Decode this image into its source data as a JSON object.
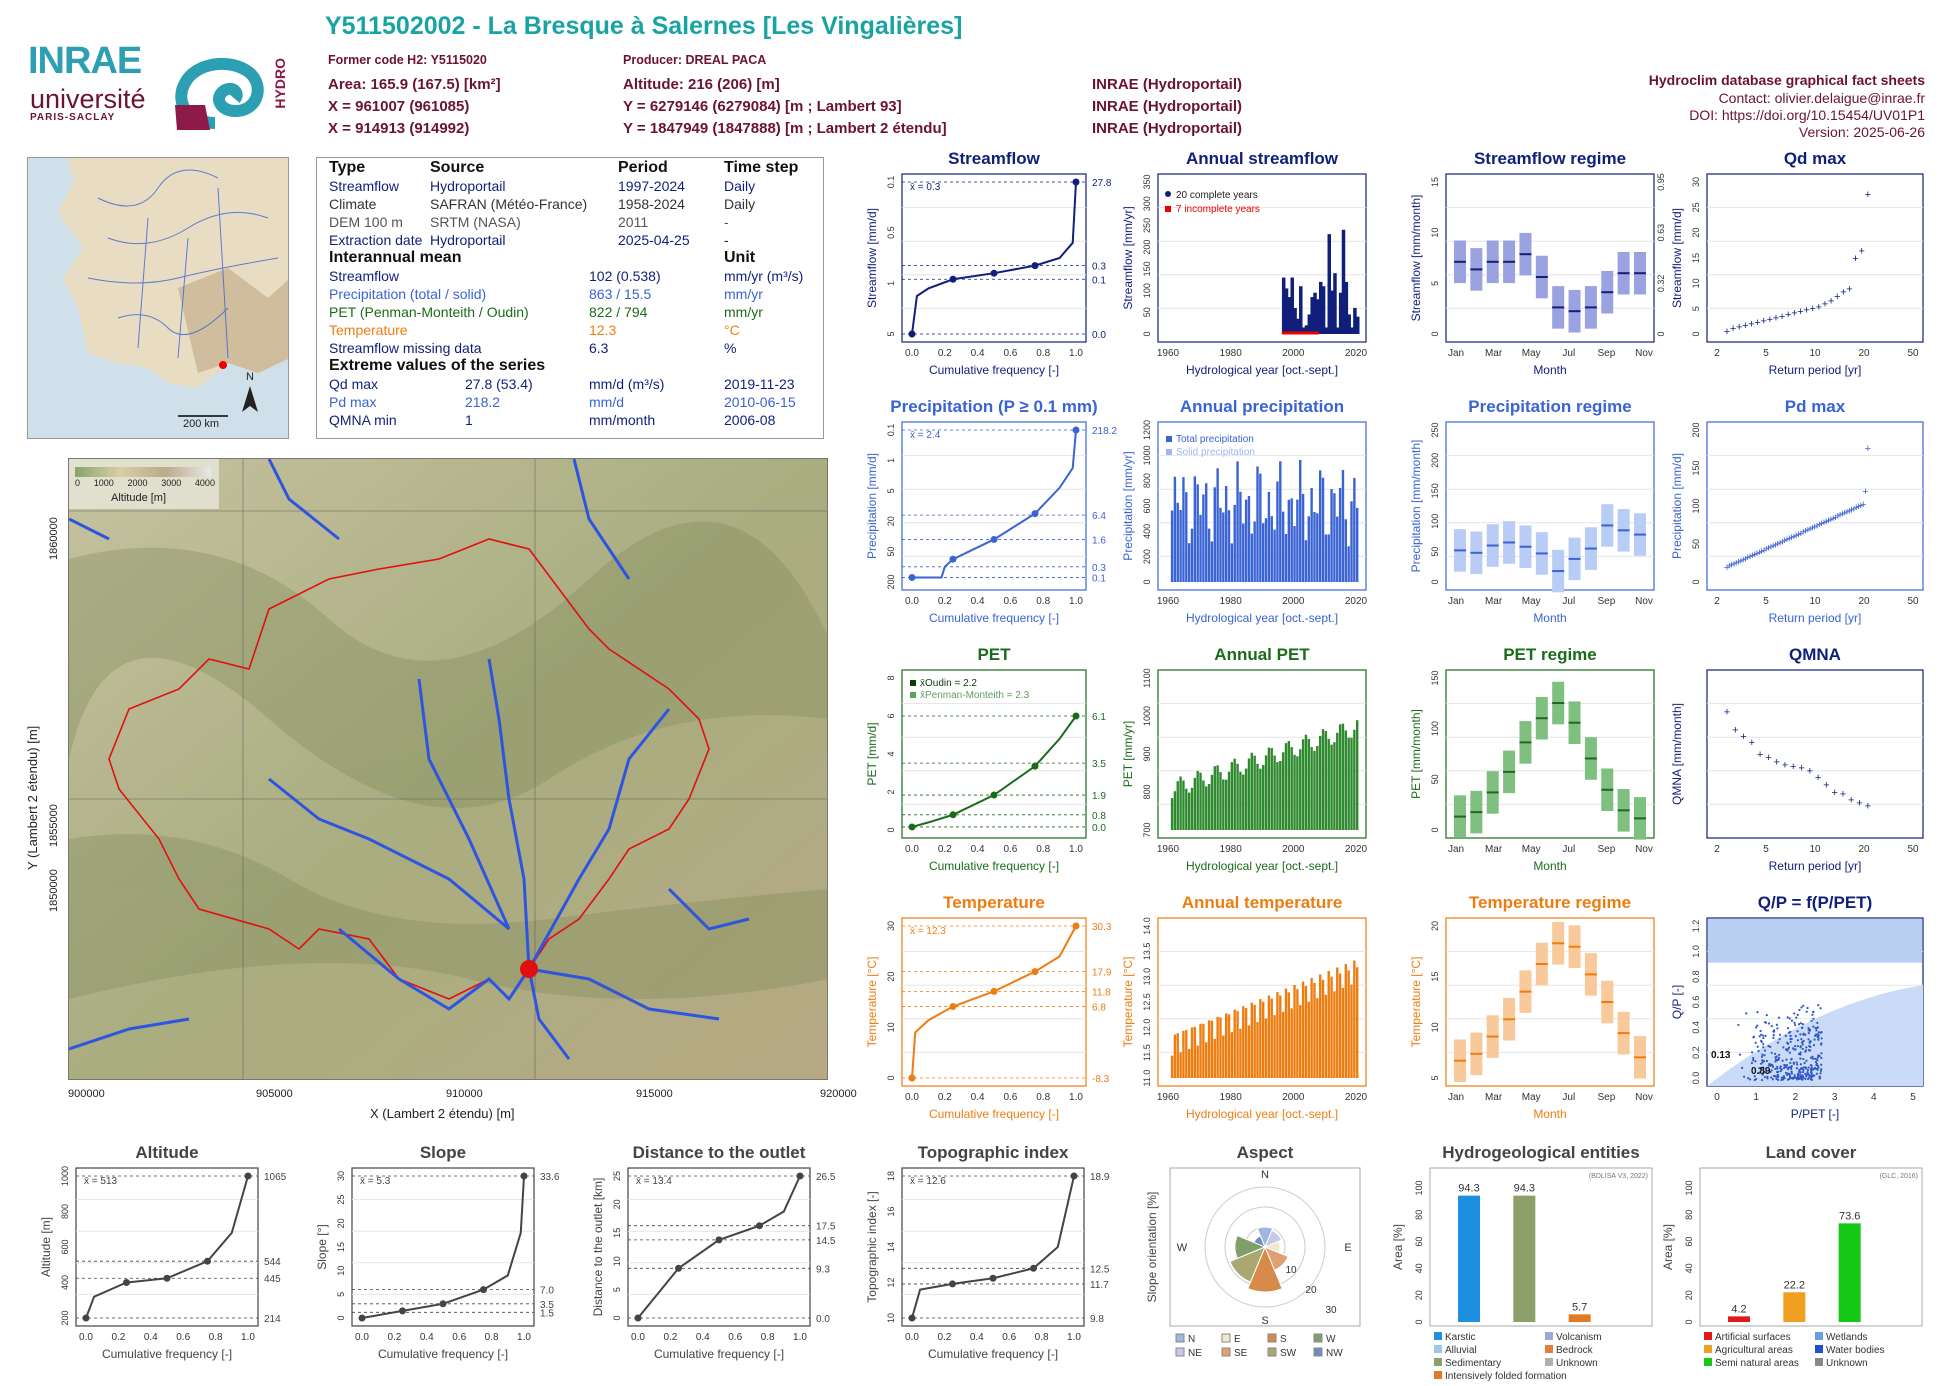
{
  "header": {
    "title": "Y511502002 - La Bresque à Salernes [Les Vingalières]",
    "former_code": "Former code H2: Y5115020",
    "producer": "Producer: DREAL PACA",
    "area": "Area: 165.9 (167.5) [km²]",
    "altitude": "Altitude: 216 (206) [m]",
    "x_l93": "X = 961007 (961085)",
    "y_l93": "Y = 6279146 (6279084) [m ; Lambert 93]",
    "x_l2": "X = 914913 (914992)",
    "y_l2": "Y = 1847949 (1847888) [m ; Lambert 2 étendu]",
    "src1": "INRAE (Hydroportail)",
    "src2": "INRAE (Hydroportail)",
    "src3": "INRAE (Hydroportail)",
    "db_title": "Hydroclim database graphical fact sheets",
    "contact": "Contact: olivier.delaigue@inrae.fr",
    "doi": "DOI: https://doi.org/10.15454/UV01P1",
    "version": "Version: 2025-06-26"
  },
  "logos": {
    "inrae": "INRAE",
    "universite": "université",
    "paris_saclay": "PARIS-SACLAY",
    "hydro": "HYDRO"
  },
  "locator_map": {
    "scale": "200 km",
    "north": "N"
  },
  "info_table": {
    "headers": [
      "Type",
      "Source",
      "Period",
      "Time step"
    ],
    "rows": [
      [
        "Streamflow",
        "Hydroportail",
        "1997-2024",
        "Daily"
      ],
      [
        "Climate",
        "SAFRAN (Météo-France)",
        "1958-2024",
        "Daily"
      ],
      [
        "DEM 100 m",
        "SRTM (NASA)",
        "2011",
        "-"
      ],
      [
        "Extraction date",
        "Hydroportail",
        "2025-04-25",
        "-"
      ]
    ],
    "interannual_title": "Interannual mean",
    "unit_title": "Unit",
    "interannual": [
      [
        "Streamflow",
        "102 (0.538)",
        "mm/yr (m³/s)"
      ],
      [
        "Precipitation (total / solid)",
        "863 / 15.5",
        "mm/yr"
      ],
      [
        "PET (Penman-Monteith / Oudin)",
        "822 / 794",
        "mm/yr"
      ],
      [
        "Temperature",
        "12.3",
        "°C"
      ],
      [
        "Streamflow missing data",
        "6.3",
        "%"
      ]
    ],
    "extreme_title": "Extreme values of the series",
    "extremes": [
      [
        "Qd max",
        "27.8 (53.4)",
        "mm/d (m³/s)",
        "2019-11-23"
      ],
      [
        "Pd max",
        "218.2",
        "mm/d",
        "2010-06-15"
      ],
      [
        "QMNA min",
        "1",
        "mm/month",
        "2006-08"
      ]
    ]
  },
  "basin_map": {
    "legend_ticks": [
      "0",
      "1000",
      "2000",
      "3000",
      "4000"
    ],
    "legend_title": "Altitude [m]",
    "x_ticks": [
      "900000",
      "905000",
      "910000",
      "915000",
      "920000"
    ],
    "y_ticks": [
      "1860000",
      "1855000",
      "1850000"
    ],
    "xlabel": "X (Lambert 2 étendu) [m]",
    "ylabel": "Y (Lambert 2 étendu) [m]"
  },
  "panels": {
    "streamflow": {
      "title": "Streamflow",
      "ylabel": "Streamflow [mm/d]",
      "xlabel": "Cumulative frequency [-]",
      "mean": "x̄ = 0.3",
      "right": [
        "27.8",
        "0.3",
        "0.1",
        "0.0"
      ],
      "yticks": [
        "5",
        "1",
        "0.5",
        "0.1"
      ]
    },
    "annual_streamflow": {
      "title": "Annual streamflow",
      "ylabel": "Streamflow [mm/yr]",
      "xlabel": "Hydrological year [oct.-sept.]",
      "legend": [
        "20 complete years",
        "7 incomplete years"
      ],
      "xticks": [
        "1960",
        "1980",
        "2000",
        "2020"
      ],
      "yticks": [
        "0",
        "50",
        "100",
        "150",
        "200",
        "250",
        "300",
        "350"
      ]
    },
    "streamflow_regime": {
      "title": "Streamflow regime",
      "ylabel": "Streamflow [mm/month]",
      "xlabel": "Month",
      "xticks": [
        "Jan",
        "Mar",
        "May",
        "Jul",
        "Sep",
        "Nov"
      ],
      "yticks": [
        "0",
        "5",
        "10",
        "15"
      ],
      "right": [
        "0",
        "0.32",
        "0.63",
        "0.95"
      ]
    },
    "qd_max": {
      "title": "Qd max",
      "ylabel": "Streamflow [mm/d]",
      "xlabel": "Return period [yr]",
      "xticks": [
        "2",
        "5",
        "10",
        "20",
        "50"
      ],
      "yticks": [
        "0",
        "5",
        "10",
        "15",
        "20",
        "25",
        "30"
      ]
    },
    "precipitation": {
      "title": "Precipitation (P ≥ 0.1 mm)",
      "ylabel": "Precipitation [mm/d]",
      "xlabel": "Cumulative frequency [-]",
      "mean": "x̄ = 2.4",
      "right": [
        "218.2",
        "6.4",
        "1.6",
        "0.3",
        "0.1"
      ],
      "yticks": [
        "200",
        "50",
        "20",
        "5",
        "1",
        "0.1"
      ]
    },
    "annual_precipitation": {
      "title": "Annual precipitation",
      "ylabel": "Precipitation [mm/yr]",
      "xlabel": "Hydrological year [oct.-sept.]",
      "legend": [
        "Total precipitation",
        "Solid precipitation"
      ],
      "xticks": [
        "1960",
        "1980",
        "2000",
        "2020"
      ],
      "yticks": [
        "0",
        "200",
        "400",
        "600",
        "800",
        "1000",
        "1200"
      ]
    },
    "precipitation_regime": {
      "title": "Precipitation regime",
      "ylabel": "Precipitation [mm/month]",
      "xlabel": "Month",
      "xticks": [
        "Jan",
        "Mar",
        "May",
        "Jul",
        "Sep",
        "Nov"
      ],
      "yticks": [
        "0",
        "50",
        "100",
        "150",
        "200",
        "250"
      ]
    },
    "pd_max": {
      "title": "Pd max",
      "ylabel": "Precipitation [mm/d]",
      "xlabel": "Return period [yr]",
      "xticks": [
        "2",
        "5",
        "10",
        "20",
        "50"
      ],
      "yticks": [
        "0",
        "50",
        "100",
        "150",
        "200"
      ]
    },
    "pet": {
      "title": "PET",
      "ylabel": "PET [mm/d]",
      "xlabel": "Cumulative frequency [-]",
      "mean1": "x̄Oudin = 2.2",
      "mean2": "x̄Penman-Monteith = 2.3",
      "right": [
        "6.1",
        "3.5",
        "1.9",
        "0.8",
        "0.0"
      ],
      "yticks": [
        "0",
        "2",
        "4",
        "6",
        "8"
      ]
    },
    "annual_pet": {
      "title": "Annual PET",
      "ylabel": "PET [mm/yr]",
      "xlabel": "Hydrological year [oct.-sept.]",
      "xticks": [
        "1960",
        "1980",
        "2000",
        "2020"
      ],
      "yticks": [
        "700",
        "800",
        "900",
        "1000",
        "1100"
      ]
    },
    "pet_regime": {
      "title": "PET regime",
      "ylabel": "PET [mm/month]",
      "xlabel": "Month",
      "xticks": [
        "Jan",
        "Mar",
        "May",
        "Jul",
        "Sep",
        "Nov"
      ],
      "yticks": [
        "0",
        "50",
        "100",
        "150"
      ]
    },
    "qmna": {
      "title": "QMNA",
      "ylabel": "QMNA [mm/month]",
      "xlabel": "Return period [yr]",
      "xticks": [
        "2",
        "5",
        "10",
        "20",
        "50"
      ]
    },
    "temperature": {
      "title": "Temperature",
      "ylabel": "Temperature [°C]",
      "xlabel": "Cumulative frequency [-]",
      "mean": "x̄ = 12.3",
      "right": [
        "30.3",
        "17.9",
        "11.8",
        "6.8",
        "-8.3"
      ],
      "yticks": [
        "0",
        "10",
        "20",
        "30"
      ]
    },
    "annual_temperature": {
      "title": "Annual temperature",
      "ylabel": "Temperature [°C]",
      "xlabel": "Hydrological year [oct.-sept.]",
      "xticks": [
        "1960",
        "1980",
        "2000",
        "2020"
      ],
      "yticks": [
        "11.0",
        "11.5",
        "12.0",
        "12.5",
        "13.0",
        "13.5",
        "14.0"
      ]
    },
    "temperature_regime": {
      "title": "Temperature regime",
      "ylabel": "Temperature [°C]",
      "xlabel": "Month",
      "xticks": [
        "Jan",
        "Mar",
        "May",
        "Jul",
        "Sep",
        "Nov"
      ],
      "yticks": [
        "5",
        "10",
        "15",
        "20"
      ]
    },
    "qp": {
      "title": "Q/P = f(P/PET)",
      "ylabel": "Q/P [-]",
      "xlabel": "P/PET [-]",
      "xticks": [
        "0",
        "1",
        "2",
        "3",
        "4",
        "5"
      ],
      "yticks": [
        "0.0",
        "0.2",
        "0.4",
        "0.6",
        "0.8",
        "1.0",
        "1.2"
      ],
      "ann1": "0.13",
      "ann2": "0.89"
    },
    "altitude": {
      "title": "Altitude",
      "ylabel": "Altitude [m]",
      "xlabel": "Cumulative frequency [-]",
      "mean": "x̄ = 513",
      "right": [
        "1065",
        "544",
        "445",
        "214"
      ],
      "yticks": [
        "200",
        "400",
        "600",
        "800",
        "1000"
      ]
    },
    "slope": {
      "title": "Slope",
      "ylabel": "Slope [°]",
      "xlabel": "Cumulative frequency [-]",
      "mean": "x̄ = 5.3",
      "right": [
        "33.6",
        "7.0",
        "3.5",
        "1.5"
      ],
      "yticks": [
        "0",
        "5",
        "10",
        "15",
        "20",
        "25",
        "30"
      ]
    },
    "distance": {
      "title": "Distance to the outlet",
      "ylabel": "Distance to the outlet [km]",
      "xlabel": "Cumulative frequency [-]",
      "mean": "x̄ = 13.4",
      "right": [
        "26.5",
        "17.5",
        "14.5",
        "9.3",
        "0.0"
      ],
      "yticks": [
        "0",
        "5",
        "10",
        "15",
        "20",
        "25"
      ]
    },
    "topo": {
      "title": "Topographic index",
      "ylabel": "Topographic index [-]",
      "xlabel": "Cumulative frequency [-]",
      "mean": "x̄ = 12.6",
      "right": [
        "18.9",
        "12.5",
        "11.7",
        "9.8"
      ],
      "yticks": [
        "10",
        "12",
        "14",
        "16",
        "18"
      ]
    },
    "aspect": {
      "title": "Aspect",
      "ylabel": "Slope orientation [%]",
      "dirs": [
        "N",
        "E",
        "S",
        "W"
      ],
      "rings": [
        "10",
        "20",
        "30"
      ],
      "legend": [
        "N",
        "E",
        "S",
        "W",
        "NE",
        "SE",
        "SW",
        "NW"
      ]
    },
    "hydrogeo": {
      "title": "Hydrogeological entities",
      "ylabel": "Area [%]",
      "source": "(BDLISA V3, 2022)",
      "labels": [
        "94.3",
        "94.3",
        "5.7"
      ],
      "yticks": [
        "0",
        "20",
        "40",
        "60",
        "80",
        "100"
      ],
      "legend": [
        "Karstic",
        "Volcanism",
        "Alluvial",
        "Bedrock",
        "Sedimentary",
        "Unknown",
        "Intensively folded formation"
      ]
    },
    "landcover": {
      "title": "Land cover",
      "ylabel": "Area [%]",
      "source": "(GLC, 2016)",
      "labels": [
        "4.2",
        "22.2",
        "73.6"
      ],
      "yticks": [
        "0",
        "20",
        "40",
        "60",
        "80",
        "100"
      ],
      "legend": [
        "Artificial surfaces",
        "Wetlands",
        "Agricultural areas",
        "Water bodies",
        "Semi natural areas",
        "Unknown"
      ]
    }
  },
  "chart_data": [
    {
      "type": "bar",
      "title": "Annual streamflow",
      "x": [
        1998,
        1999,
        2000,
        2001,
        2002,
        2003,
        2004,
        2005,
        2006,
        2007,
        2008,
        2009,
        2010,
        2011,
        2012,
        2013,
        2014,
        2015,
        2016,
        2017,
        2018,
        2019,
        2020,
        2021,
        2022,
        2023,
        2024
      ],
      "values": [
        130,
        105,
        85,
        130,
        60,
        35,
        110,
        15,
        20,
        45,
        85,
        95,
        80,
        120,
        110,
        15,
        230,
        100,
        140,
        15,
        95,
        240,
        120,
        45,
        15,
        60,
        40
      ]
    },
    {
      "type": "bar",
      "title": "Streamflow regime",
      "categories": [
        "Jan",
        "Feb",
        "Mar",
        "Apr",
        "May",
        "Jun",
        "Jul",
        "Aug",
        "Sep",
        "Oct",
        "Nov",
        "Dec"
      ],
      "values": [
        9.5,
        8.5,
        9.5,
        9.5,
        10.5,
        7.5,
        3.5,
        3.0,
        3.5,
        5.5,
        8,
        8
      ]
    },
    {
      "type": "bar",
      "title": "Precipitation regime",
      "categories": [
        "Jan",
        "Feb",
        "Mar",
        "Apr",
        "May",
        "Jun",
        "Jul",
        "Aug",
        "Sep",
        "Oct",
        "Nov",
        "Dec"
      ],
      "values": [
        52,
        48,
        60,
        65,
        58,
        47,
        18,
        38,
        55,
        93,
        85,
        78
      ]
    },
    {
      "type": "bar",
      "title": "PET regime",
      "categories": [
        "Jan",
        "Feb",
        "Mar",
        "Apr",
        "May",
        "Jun",
        "Jul",
        "Aug",
        "Sep",
        "Oct",
        "Nov",
        "Dec"
      ],
      "values": [
        15,
        20,
        42,
        65,
        98,
        125,
        142,
        120,
        80,
        45,
        22,
        13
      ]
    },
    {
      "type": "bar",
      "title": "Temperature regime",
      "categories": [
        "Jan",
        "Feb",
        "Mar",
        "Apr",
        "May",
        "Jun",
        "Jul",
        "Aug",
        "Sep",
        "Oct",
        "Nov",
        "Dec"
      ],
      "values": [
        4.5,
        5.5,
        8,
        10.5,
        14.5,
        18.5,
        21.5,
        21,
        17,
        13,
        8.5,
        5
      ]
    },
    {
      "type": "bar",
      "title": "Hydrogeological entities",
      "categories": [
        "Karstic",
        "Sedimentary",
        "Intensively folded formation"
      ],
      "values": [
        94.3,
        94.3,
        5.7
      ]
    },
    {
      "type": "bar",
      "title": "Land cover",
      "categories": [
        "Artificial surfaces",
        "Agricultural areas",
        "Semi natural areas"
      ],
      "values": [
        4.2,
        22.2,
        73.6
      ]
    }
  ],
  "colors": {
    "navy": "#0f1f7a",
    "blue": "#3a63d4",
    "green": "#1a6b1a",
    "orange": "#ee7d11",
    "teal": "#1aa3a3",
    "maroon": "#6b1332"
  }
}
